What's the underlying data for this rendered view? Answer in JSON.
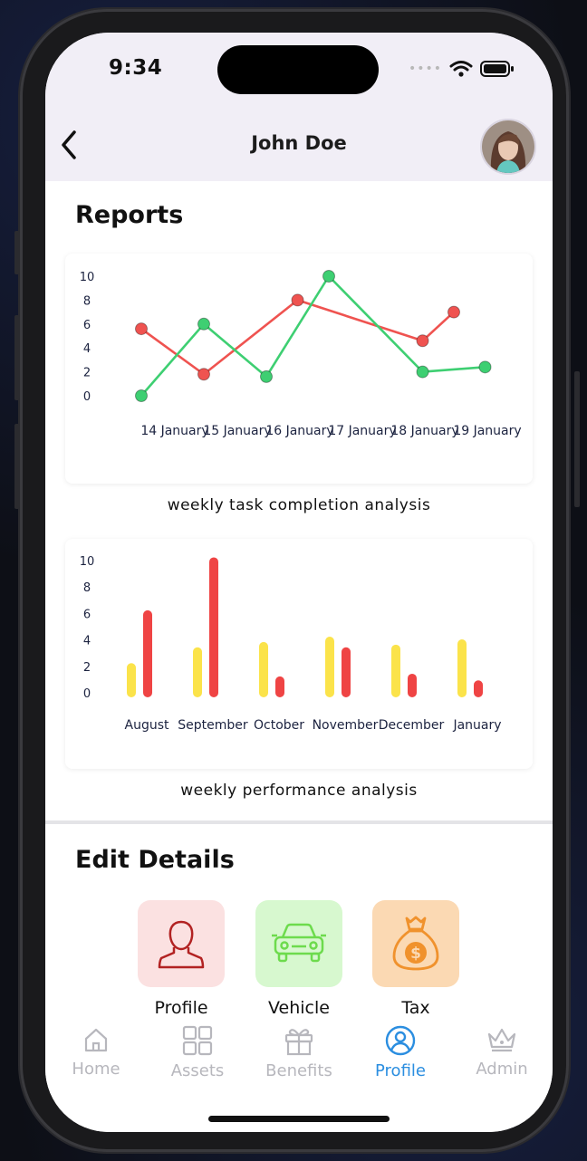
{
  "status": {
    "time": "9:34"
  },
  "header": {
    "title": "John Doe"
  },
  "reports": {
    "title": "Reports",
    "line_caption": "weekly task completion analysis",
    "bar_caption": "weekly performance analysis"
  },
  "edit": {
    "title": "Edit Details",
    "tiles": [
      {
        "label": "Profile",
        "icon": "person-icon",
        "bg": "#fbe1e1",
        "color": "#b22222"
      },
      {
        "label": "Vehicle",
        "icon": "car-icon",
        "bg": "#d7f8cf",
        "color": "#6ddb4d"
      },
      {
        "label": "Tax",
        "icon": "money-bag-icon",
        "bg": "#fbd9b3",
        "color": "#f0922d"
      }
    ]
  },
  "tabs": [
    {
      "label": "Home",
      "icon": "home-icon",
      "active": false
    },
    {
      "label": "Assets",
      "icon": "grid-icon",
      "active": false
    },
    {
      "label": "Benefits",
      "icon": "gift-icon",
      "active": false
    },
    {
      "label": "Profile",
      "icon": "user-circle-icon",
      "active": true
    },
    {
      "label": "Admin",
      "icon": "crown-icon",
      "active": false
    }
  ],
  "chart_data": [
    {
      "type": "line",
      "title": "",
      "categories": [
        "14 January",
        "15 January",
        "16 January",
        "17 January",
        "18 January",
        "19 January"
      ],
      "y_ticks": [
        "0",
        "2",
        "4",
        "6",
        "8",
        "10"
      ],
      "ylim": [
        0,
        10
      ],
      "grid": false,
      "series": [
        {
          "color": "#ef5350",
          "x": [
            0,
            1,
            2.5,
            4.5,
            5
          ],
          "values": [
            5.6,
            1.8,
            8.0,
            4.6,
            7.0
          ]
        },
        {
          "color": "#3ecf72",
          "x": [
            0,
            1,
            2,
            3,
            4.5,
            5.5
          ],
          "values": [
            0,
            6.0,
            1.6,
            10.0,
            2.0,
            2.4
          ]
        }
      ]
    },
    {
      "type": "bar",
      "title": "",
      "categories": [
        "August",
        "September",
        "October",
        "November",
        "December",
        "January"
      ],
      "y_ticks": [
        "0",
        "2",
        "4",
        "6",
        "8",
        "10"
      ],
      "ylim": [
        0,
        10
      ],
      "grid": false,
      "series": [
        {
          "color": "#fbe34a",
          "values": [
            1.9,
            3.1,
            3.5,
            3.9,
            3.3,
            3.7
          ]
        },
        {
          "color": "#ef4444",
          "values": [
            5.9,
            9.9,
            0.9,
            3.1,
            1.1,
            0.6
          ]
        }
      ]
    }
  ]
}
